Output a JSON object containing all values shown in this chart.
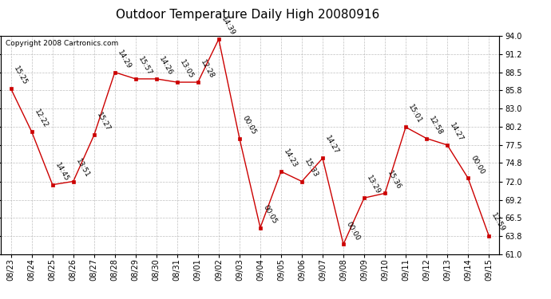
{
  "title": "Outdoor Temperature Daily High 20080916",
  "copyright": "Copyright 2008 Cartronics.com",
  "background_color": "#ffffff",
  "plot_background": "#ffffff",
  "grid_color": "#b0b0b0",
  "line_color": "#cc0000",
  "marker_color": "#cc0000",
  "dates": [
    "08/23",
    "08/24",
    "08/25",
    "08/26",
    "08/27",
    "08/28",
    "08/29",
    "08/30",
    "08/31",
    "09/01",
    "09/02",
    "09/03",
    "09/04",
    "09/05",
    "09/06",
    "09/07",
    "09/08",
    "09/09",
    "09/10",
    "09/11",
    "09/12",
    "09/13",
    "09/14",
    "09/15"
  ],
  "values": [
    86.0,
    79.5,
    71.5,
    72.0,
    79.0,
    88.5,
    87.5,
    87.5,
    87.0,
    87.0,
    93.5,
    78.5,
    65.0,
    73.5,
    72.0,
    75.5,
    62.5,
    69.5,
    70.2,
    80.2,
    78.5,
    77.5,
    72.5,
    63.8
  ],
  "time_labels": [
    "15:25",
    "12:22",
    "14:45",
    "13:51",
    "15:27",
    "14:29",
    "15:57",
    "14:26",
    "13:05",
    "12:28",
    "14:39",
    "00:05",
    "00:05",
    "14:23",
    "15:33",
    "14:27",
    "00:00",
    "13:29",
    "15:36",
    "15:01",
    "12:58",
    "14:27",
    "00:00",
    "12:59"
  ],
  "ylim": [
    61.0,
    94.0
  ],
  "yticks": [
    61.0,
    63.8,
    66.5,
    69.2,
    72.0,
    74.8,
    77.5,
    80.2,
    83.0,
    85.8,
    88.5,
    91.2,
    94.0
  ],
  "title_fontsize": 11,
  "label_fontsize": 6.5,
  "tick_fontsize": 7,
  "copyright_fontsize": 6.5,
  "figwidth": 6.9,
  "figheight": 3.75,
  "dpi": 100
}
